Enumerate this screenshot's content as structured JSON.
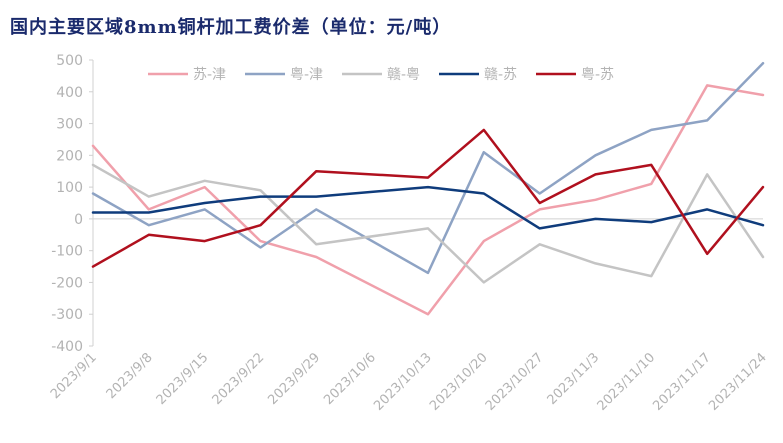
{
  "chart_data": {
    "type": "line",
    "title": "国内主要区域8mm铜杆加工费价差（单位：元/吨）",
    "xlabel": "",
    "ylabel": "",
    "ylim": [
      -400,
      500
    ],
    "yticks": [
      -400,
      -300,
      -200,
      -100,
      0,
      100,
      200,
      300,
      400,
      500
    ],
    "grid": false,
    "legend_position": "top",
    "categories": [
      "2023/9/1",
      "2023/9/8",
      "2023/9/15",
      "2023/9/22",
      "2023/9/29",
      "2023/10/6",
      "2023/10/13",
      "2023/10/20",
      "2023/10/27",
      "2023/11/3",
      "2023/11/10",
      "2023/11/17",
      "2023/11/24"
    ],
    "series": [
      {
        "name": "苏-津",
        "color": "#f0a0ab",
        "values": [
          230,
          30,
          100,
          -70,
          -120,
          null,
          -300,
          -70,
          30,
          60,
          110,
          420,
          390
        ]
      },
      {
        "name": "粤-津",
        "color": "#8ea3c4",
        "values": [
          80,
          -20,
          30,
          -90,
          30,
          null,
          -170,
          210,
          80,
          200,
          280,
          310,
          490
        ]
      },
      {
        "name": "赣-粤",
        "color": "#c4c4c4",
        "values": [
          170,
          70,
          120,
          90,
          -80,
          null,
          -30,
          -200,
          -80,
          -140,
          -180,
          140,
          -120
        ]
      },
      {
        "name": "赣-苏",
        "color": "#0f3c7c",
        "values": [
          20,
          20,
          50,
          70,
          70,
          null,
          100,
          80,
          -30,
          0,
          -10,
          30,
          -20
        ]
      },
      {
        "name": "粤-苏",
        "color": "#b0101e",
        "values": [
          -150,
          -50,
          -70,
          -20,
          150,
          null,
          130,
          280,
          50,
          140,
          170,
          -110,
          100
        ]
      }
    ]
  }
}
